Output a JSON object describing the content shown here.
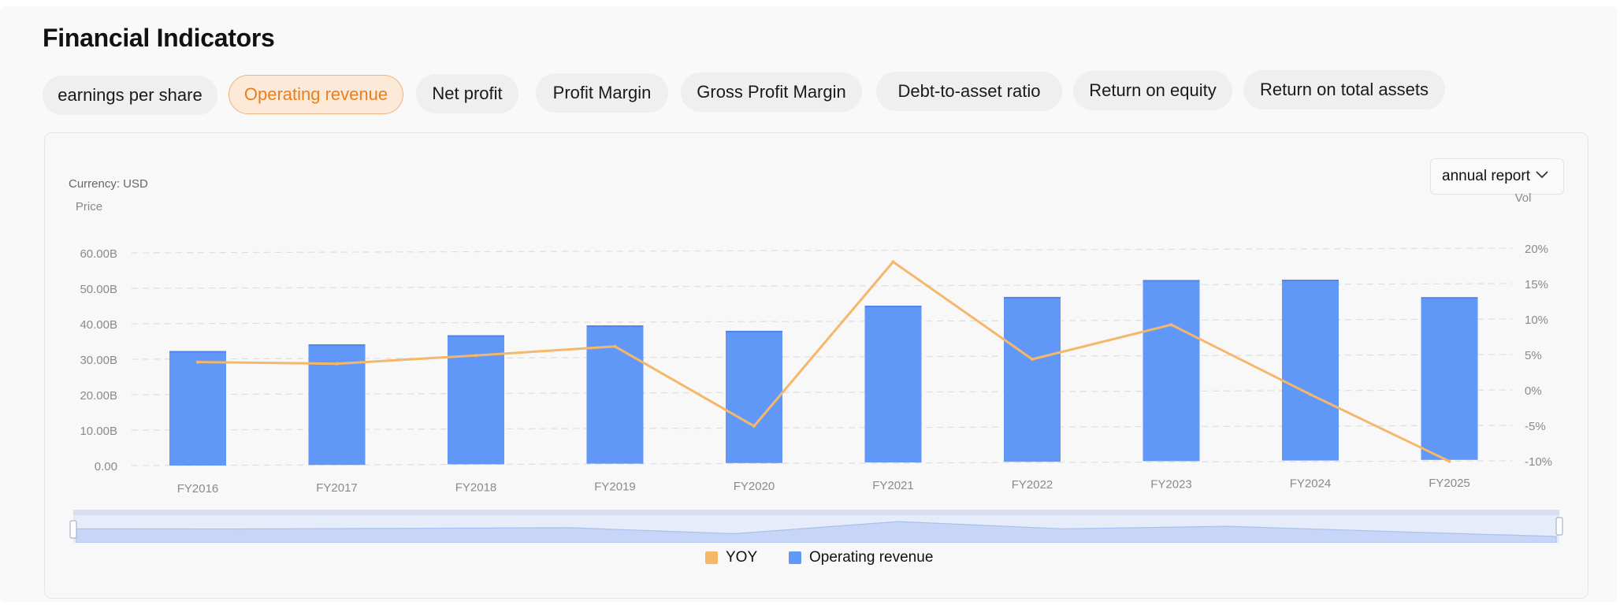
{
  "page_title": "Financial Indicators",
  "tabs": [
    {
      "label": "earnings per share",
      "active": false
    },
    {
      "label": "Operating revenue",
      "active": true
    },
    {
      "label": "Net profit",
      "active": false
    },
    {
      "label": "Profit Margin",
      "active": false
    },
    {
      "label": "Gross Profit Margin",
      "active": false
    },
    {
      "label": "Debt-to-asset ratio",
      "active": false
    },
    {
      "label": "Return on equity",
      "active": false
    },
    {
      "label": "Return on total assets",
      "active": false
    }
  ],
  "currency_label": "Currency: USD",
  "report_dropdown": {
    "value": "annual report",
    "icon": "chevron-down-icon"
  },
  "colors": {
    "bar": "#6198f8",
    "line": "#f5b76a",
    "accent": "#e87f1e"
  },
  "chart_data": {
    "type": "bar",
    "categories": [
      "FY2016",
      "FY2017",
      "FY2018",
      "FY2019",
      "FY2020",
      "FY2021",
      "FY2022",
      "FY2023",
      "FY2024",
      "FY2025"
    ],
    "series": [
      {
        "name": "Operating revenue",
        "axis": "left",
        "type": "bar",
        "values": [
          32.3,
          34.0,
          36.4,
          39.0,
          37.3,
          44.2,
          46.5,
          51.1,
          51.0,
          45.9
        ]
      },
      {
        "name": "YOY",
        "axis": "right",
        "type": "line",
        "values": [
          4.6,
          4.3,
          5.4,
          6.6,
          -4.7,
          18.4,
          4.6,
          9.4,
          -0.5,
          -10.0
        ]
      }
    ],
    "left_axis": {
      "label": "Price",
      "ylim": [
        0,
        60
      ],
      "ticks": [
        "60.00B",
        "50.00B",
        "40.00B",
        "30.00B",
        "20.00B",
        "10.00B",
        "0.00"
      ]
    },
    "right_axis": {
      "label": "Vol",
      "ylim": [
        -10,
        20
      ],
      "ticks": [
        "20%",
        "15%",
        "10%",
        "5%",
        "0%",
        "-5%",
        "-10%"
      ]
    },
    "grid": true,
    "legend_position": "bottom-center",
    "zoom_slider": true
  },
  "legend": [
    {
      "label": "YOY",
      "color": "#f5b76a"
    },
    {
      "label": "Operating revenue",
      "color": "#6198f8"
    }
  ]
}
